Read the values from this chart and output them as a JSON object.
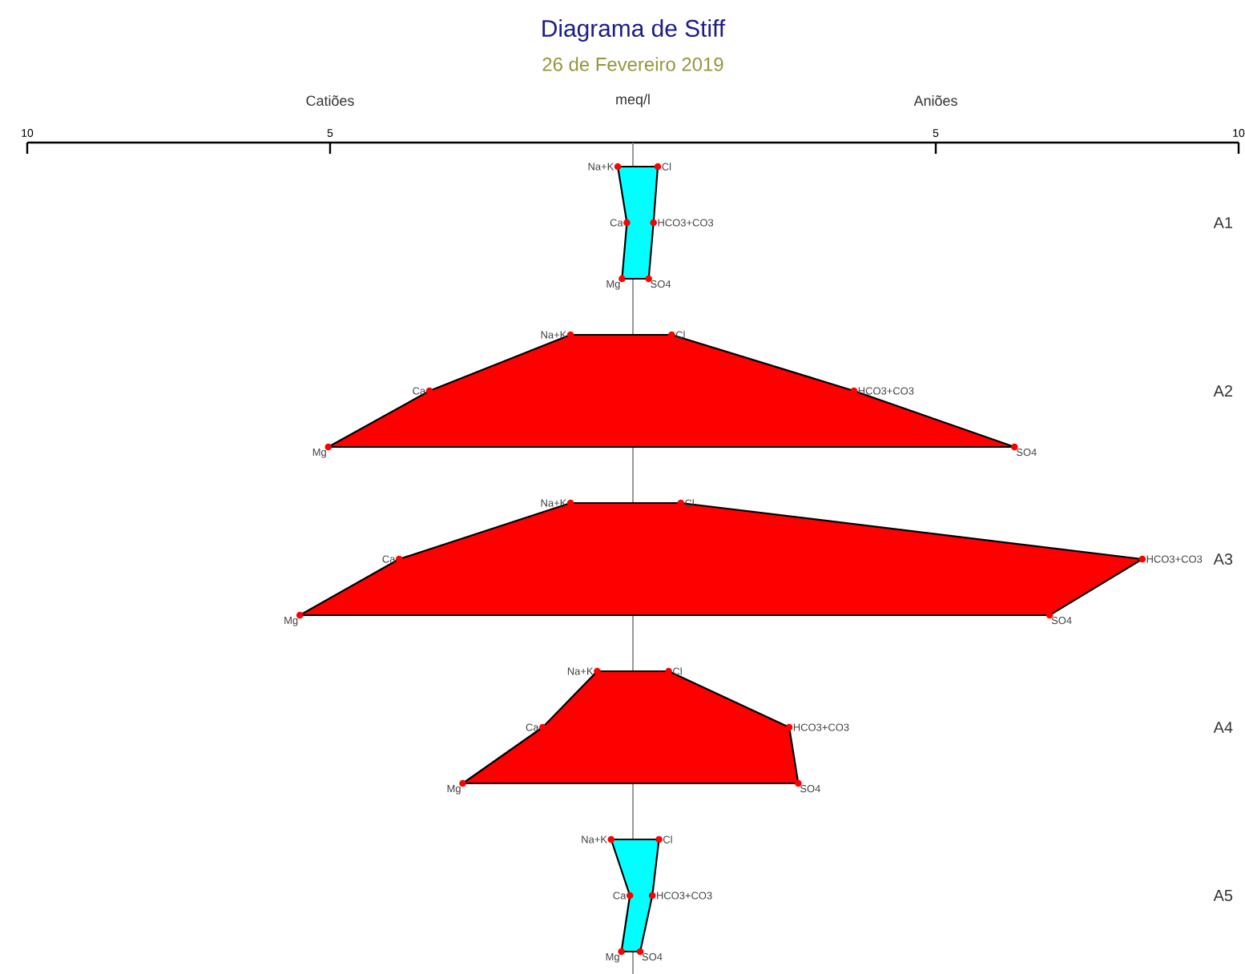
{
  "chart_data": {
    "type": "area",
    "orientation": "horizontal",
    "title": "Diagrama de Stiff",
    "subtitle": "26 de Fevereiro 2019",
    "xlabel": "meq/l",
    "annotations": [
      "Catiões",
      "Aniões",
      "A1",
      "A2",
      "A3",
      "A4",
      "A5",
      {
        "text": "Na+K",
        "x": -0.25
      },
      {
        "text": "Ca",
        "x": -0.1
      },
      {
        "text": "Mg",
        "x": -0.18
      },
      {
        "text": "Cl",
        "x": 0.41
      },
      {
        "text": "HCO3+CO3",
        "x": 0.34
      },
      {
        "text": "SO4",
        "x": 0.26
      },
      {
        "text": "Na+K",
        "x": -1.03
      },
      {
        "text": "Ca",
        "x": -3.36
      },
      {
        "text": "Mg",
        "x": -5.03
      },
      {
        "text": "Cl",
        "x": 0.64
      },
      {
        "text": "HCO3+CO3",
        "x": 3.65
      },
      {
        "text": "SO4",
        "x": 6.3
      },
      {
        "text": "Na+K",
        "x": -1.03
      },
      {
        "text": "Ca",
        "x": -3.86
      },
      {
        "text": "Mg",
        "x": -5.5
      },
      {
        "text": "Cl",
        "x": 0.79
      },
      {
        "text": "HCO3+CO3",
        "x": 8.41
      },
      {
        "text": "SO4",
        "x": 6.88
      },
      {
        "text": "Na+K",
        "x": -0.59
      },
      {
        "text": "Ca",
        "x": -1.49
      },
      {
        "text": "Mg",
        "x": -2.81
      },
      {
        "text": "Cl",
        "x": 0.59
      },
      {
        "text": "HCO3+CO3",
        "x": 2.58
      },
      {
        "text": "SO4",
        "x": 2.73
      },
      {
        "text": "Na+K",
        "x": -0.36
      },
      {
        "text": "Ca",
        "x": -0.05
      },
      {
        "text": "Mg",
        "x": -0.19
      },
      {
        "text": "Cl",
        "x": 0.43
      },
      {
        "text": "HCO3+CO3",
        "x": 0.32
      },
      {
        "text": "SO4",
        "x": 0.12
      }
    ],
    "categories": [
      null,
      null,
      null,
      null,
      null,
      null,
      null,
      null,
      null,
      null,
      null,
      null,
      null,
      null,
      null
    ],
    "series": [
      {
        "color": "#00ffff",
        "values": [
          -0.25,
          -0.1,
          -0.18,
          null,
          null,
          null,
          null,
          null,
          null,
          null,
          null,
          null,
          null,
          null,
          null
        ]
      },
      {
        "color": "#00ffff",
        "values": [
          0.41,
          0.34,
          0.26,
          null,
          null,
          null,
          null,
          null,
          null,
          null,
          null,
          null,
          null,
          null,
          null
        ]
      },
      {
        "color": "#ff0000",
        "values": [
          null,
          null,
          null,
          -1.03,
          -3.36,
          -5.03,
          null,
          null,
          null,
          null,
          null,
          null,
          null,
          null,
          null
        ]
      },
      {
        "color": "#ff0000",
        "values": [
          null,
          null,
          null,
          0.64,
          3.65,
          6.3,
          null,
          null,
          null,
          null,
          null,
          null,
          null,
          null,
          null
        ]
      },
      {
        "color": "#ff0000",
        "values": [
          null,
          null,
          null,
          null,
          null,
          null,
          -1.03,
          -3.86,
          -5.5,
          null,
          null,
          null,
          null,
          null,
          null
        ]
      },
      {
        "color": "#ff0000",
        "values": [
          null,
          null,
          null,
          null,
          null,
          null,
          0.79,
          8.41,
          6.88,
          null,
          null,
          null,
          null,
          null,
          null
        ]
      },
      {
        "color": "#ff0000",
        "values": [
          null,
          null,
          null,
          null,
          null,
          null,
          null,
          null,
          null,
          -0.59,
          -1.49,
          -2.81,
          null,
          null,
          null
        ]
      },
      {
        "color": "#ff0000",
        "values": [
          null,
          null,
          null,
          null,
          null,
          null,
          null,
          null,
          null,
          0.59,
          2.58,
          2.73,
          null,
          null,
          null
        ]
      },
      {
        "color": "#00ffff",
        "values": [
          null,
          null,
          null,
          null,
          null,
          null,
          null,
          null,
          null,
          null,
          null,
          null,
          -0.36,
          -0.05,
          -0.19
        ]
      },
      {
        "color": "#00ffff",
        "values": [
          null,
          null,
          null,
          null,
          null,
          null,
          null,
          null,
          null,
          null,
          null,
          null,
          0.43,
          0.32,
          0.12
        ]
      }
    ],
    "xlim": [
      -10,
      10
    ],
    "xticks": [
      {
        "value": -10,
        "label": "10"
      },
      {
        "value": -5,
        "label": "5"
      },
      5,
      10
    ],
    "ref_lines": [
      {
        "axis": "x",
        "value": 0,
        "color": "#808080"
      }
    ],
    "marker": "circle",
    "line_style": "solid"
  }
}
